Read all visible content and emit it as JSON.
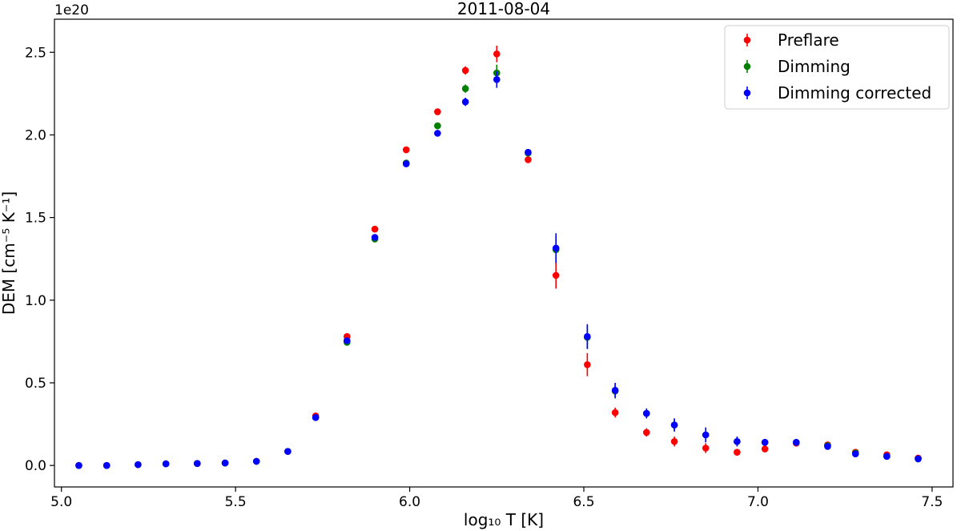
{
  "chart_data": {
    "type": "scatter",
    "title": "2011-08-04",
    "xlabel": "log₁₀ T [K]",
    "ylabel": "DEM [cm⁻⁵ K⁻¹]",
    "y_offset_label": "1e20",
    "xlim": [
      4.98,
      7.56
    ],
    "ylim": [
      -0.13,
      2.7
    ],
    "x_ticks": [
      5.0,
      5.5,
      6.0,
      6.5,
      7.0,
      7.5
    ],
    "x_tick_labels": [
      "5.0",
      "5.5",
      "6.0",
      "6.5",
      "7.0",
      "7.5"
    ],
    "y_ticks": [
      0.0,
      0.5,
      1.0,
      1.5,
      2.0,
      2.5
    ],
    "y_tick_labels": [
      "0.0",
      "0.5",
      "1.0",
      "1.5",
      "2.0",
      "2.5"
    ],
    "grid": false,
    "legend_position": "top-right",
    "x": [
      5.05,
      5.13,
      5.22,
      5.3,
      5.39,
      5.47,
      5.56,
      5.65,
      5.73,
      5.82,
      5.9,
      5.99,
      6.08,
      6.16,
      6.25,
      6.34,
      6.42,
      6.51,
      6.59,
      6.68,
      6.76,
      6.85,
      6.94,
      7.02,
      7.11,
      7.2,
      7.28,
      7.37,
      7.46
    ],
    "series": [
      {
        "name": "Preflare",
        "color": "#ff0000",
        "values": [
          0.0,
          0.0,
          0.005,
          0.01,
          0.012,
          0.015,
          0.025,
          0.085,
          0.3,
          0.78,
          1.43,
          1.91,
          2.14,
          2.39,
          2.49,
          1.85,
          1.15,
          0.61,
          0.32,
          0.2,
          0.145,
          0.105,
          0.08,
          0.1,
          0.135,
          0.125,
          0.08,
          0.065,
          0.045
        ],
        "errors": [
          0.0,
          0.0,
          0.002,
          0.003,
          0.004,
          0.005,
          0.006,
          0.01,
          0.015,
          0.02,
          0.015,
          0.015,
          0.02,
          0.025,
          0.05,
          0.02,
          0.08,
          0.07,
          0.03,
          0.025,
          0.03,
          0.03,
          0.015,
          0.015,
          0.015,
          0.015,
          0.015,
          0.01,
          0.01
        ]
      },
      {
        "name": "Dimming",
        "color": "#008000",
        "values": [
          0.0,
          0.0,
          0.005,
          0.01,
          0.012,
          0.015,
          0.025,
          0.085,
          0.29,
          0.745,
          1.37,
          1.83,
          2.055,
          2.28,
          2.375,
          1.89,
          1.305,
          0.775,
          0.45,
          0.315,
          0.245,
          0.185,
          0.145,
          0.14,
          0.14,
          0.12,
          0.075,
          0.055,
          0.04
        ],
        "errors": [
          0.0,
          0.0,
          0.002,
          0.003,
          0.004,
          0.005,
          0.006,
          0.01,
          0.015,
          0.02,
          0.015,
          0.015,
          0.02,
          0.025,
          0.05,
          0.02,
          0.08,
          0.07,
          0.045,
          0.03,
          0.035,
          0.04,
          0.025,
          0.02,
          0.015,
          0.015,
          0.015,
          0.01,
          0.01
        ]
      },
      {
        "name": "Dimming corrected",
        "color": "#0000ff",
        "values": [
          0.0,
          0.0,
          0.005,
          0.01,
          0.012,
          0.015,
          0.025,
          0.085,
          0.29,
          0.755,
          1.38,
          1.825,
          2.01,
          2.2,
          2.335,
          1.895,
          1.315,
          0.78,
          0.455,
          0.315,
          0.245,
          0.185,
          0.145,
          0.14,
          0.14,
          0.115,
          0.07,
          0.055,
          0.04
        ],
        "errors": [
          0.0,
          0.0,
          0.002,
          0.003,
          0.004,
          0.005,
          0.006,
          0.01,
          0.015,
          0.02,
          0.015,
          0.015,
          0.02,
          0.025,
          0.05,
          0.02,
          0.09,
          0.075,
          0.045,
          0.03,
          0.04,
          0.045,
          0.03,
          0.02,
          0.015,
          0.015,
          0.015,
          0.01,
          0.01
        ]
      }
    ]
  }
}
